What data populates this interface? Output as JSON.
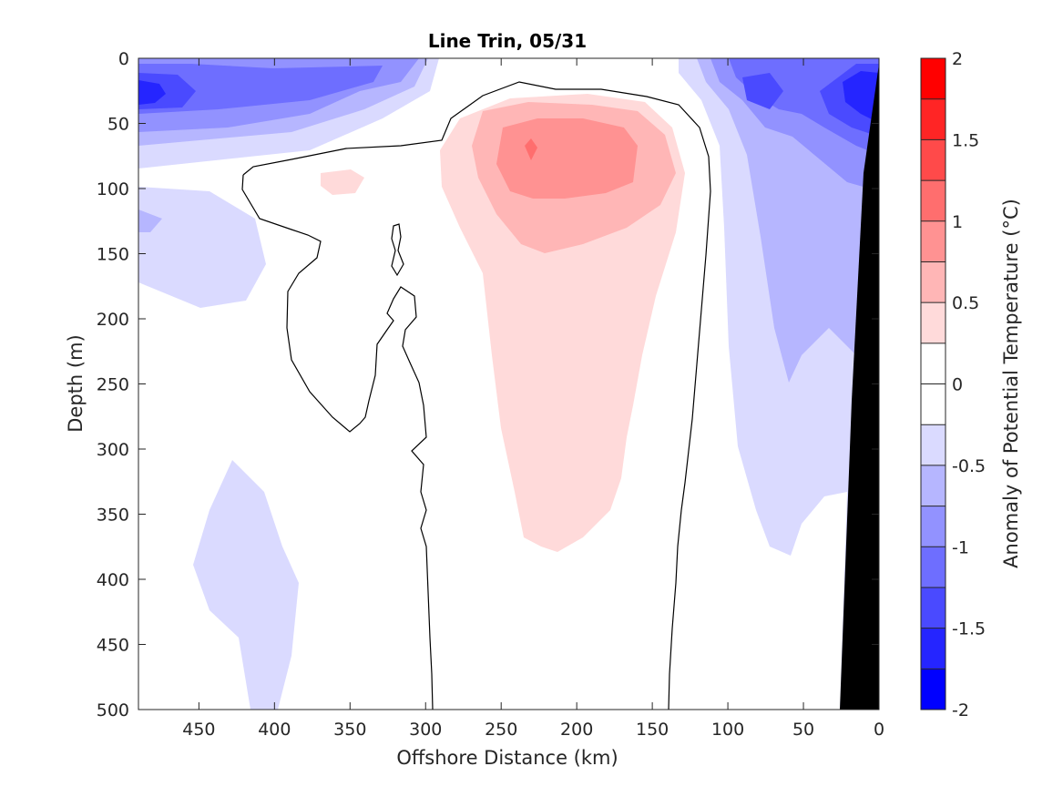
{
  "chart_data": {
    "type": "heatmap",
    "subtype": "filled-contour section",
    "title": "Line Trin, 05/31",
    "xlabel": "Offshore Distance (km)",
    "ylabel": "Depth (m)",
    "xlim": [
      490,
      0
    ],
    "x_reversed": true,
    "ylim": [
      0,
      500
    ],
    "y_reversed": true,
    "xticks": [
      450,
      400,
      350,
      300,
      250,
      200,
      150,
      100,
      50,
      0
    ],
    "yticks": [
      0,
      50,
      100,
      150,
      200,
      250,
      300,
      350,
      400,
      450,
      500
    ],
    "colorbar": {
      "label": "Anomaly of Potential Temperature (°C)",
      "limits": [
        -2,
        2
      ],
      "tick_values": [
        2,
        1.5,
        1,
        0.5,
        0,
        -0.5,
        -1,
        -1.5,
        -2
      ],
      "tick_labels": [
        "2",
        "1.5",
        "1",
        "0.5",
        "0",
        "-0.5",
        "-1",
        "-1.5",
        "-2"
      ],
      "levels": [
        -2,
        -1.75,
        -1.5,
        -1.25,
        -1,
        -0.75,
        -0.5,
        -0.25,
        0,
        0.25,
        0.5,
        0.75,
        1,
        1.25,
        1.5,
        1.75,
        2
      ],
      "colors": [
        "#0000ff",
        "#2525ff",
        "#4a4aff",
        "#6e6eff",
        "#9292ff",
        "#b6b6ff",
        "#dadaff",
        "#ffffff",
        "#ffffff",
        "#ffdada",
        "#ffb6b6",
        "#ff9292",
        "#ff6e6e",
        "#ff4a4a",
        "#ff2525",
        "#ff0000"
      ]
    },
    "zero_contour_color": "#000000",
    "bathymetry_color": "#000000",
    "features": [
      {
        "name": "warm core",
        "center_km": 210,
        "center_depth_m": 85,
        "max_anomaly": 1.25
      },
      {
        "name": "cold surface layer offshore",
        "depth_range_m": [
          0,
          60
        ],
        "min_anomaly": -1.25
      },
      {
        "name": "cold nearshore core",
        "center_km": 15,
        "center_depth_m": 30,
        "min_anomaly": -1.75
      }
    ]
  }
}
